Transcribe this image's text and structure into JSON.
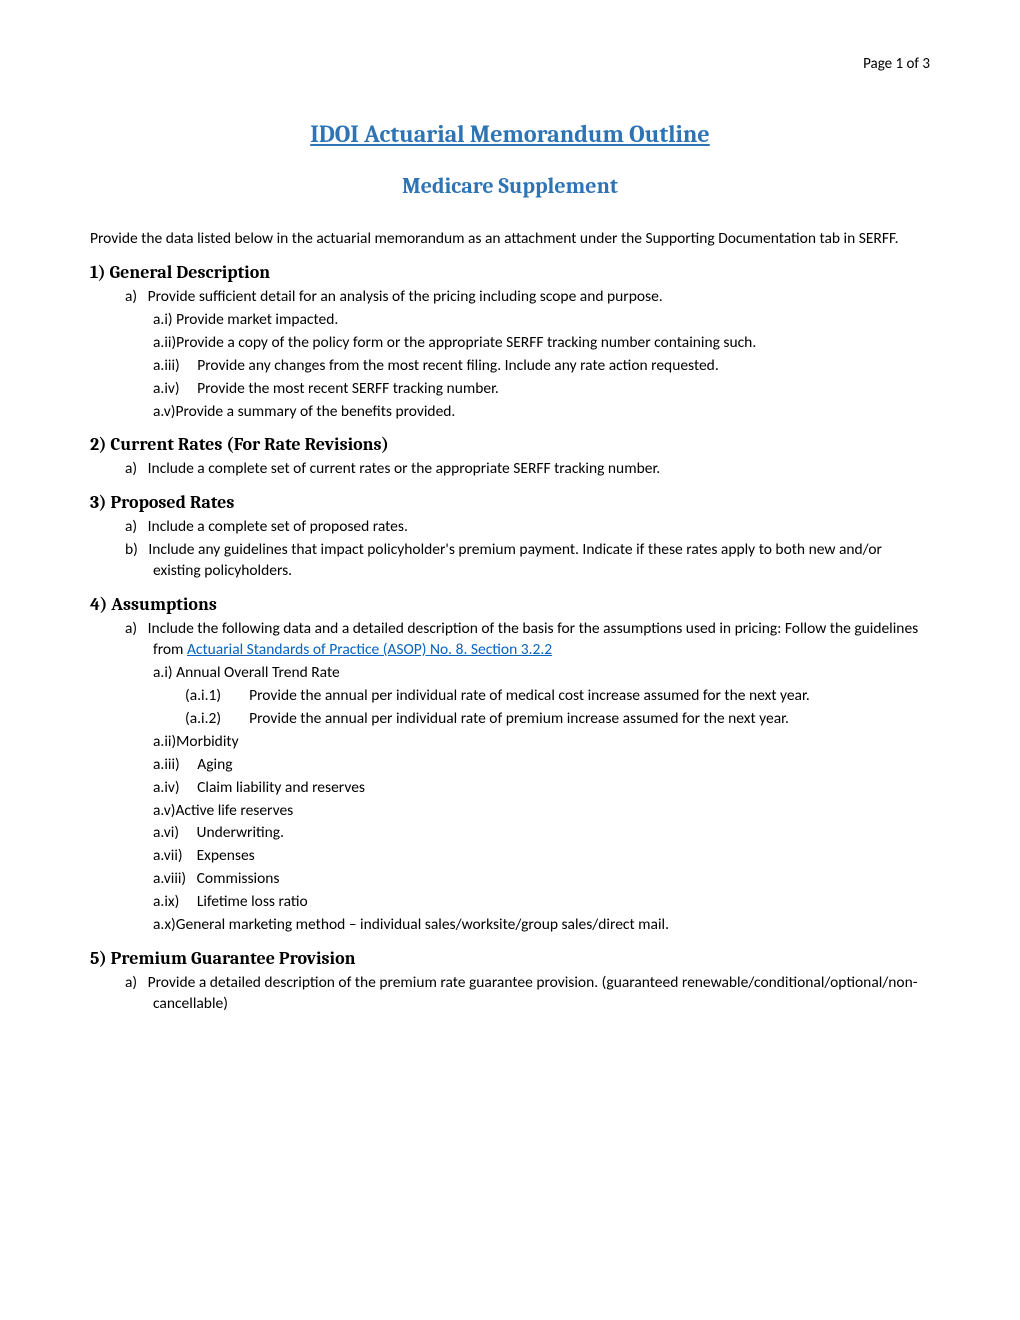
{
  "page_number": "Page 1 of 3",
  "title": "IDOI Actuarial Memorandum Outline",
  "subtitle": "Medicare Supplement",
  "intro": "Provide the data listed below in the actuarial memorandum as an attachment under the Supporting Documentation tab in SERFF.",
  "s1": {
    "heading": "1) General Description",
    "a": "Provide sufficient detail for an analysis of the pricing including scope and purpose.",
    "a_i": "Provide market impacted.",
    "a_ii": "Provide a copy of the policy form or the appropriate SERFF tracking number containing such.",
    "a_iii": "Provide any changes from the most recent filing. Include any rate action requested.",
    "a_iv": "Provide the most recent SERFF tracking number.",
    "a_v": "Provide a summary of the benefits provided."
  },
  "s2": {
    "heading": "2) Current Rates (For Rate Revisions)",
    "a": "Include a complete set of current rates or the appropriate SERFF tracking number."
  },
  "s3": {
    "heading": "3) Proposed Rates",
    "a": "Include a complete set of proposed rates.",
    "b": "Include any guidelines that impact policyholder's premium payment. Indicate if these rates apply to both new and/or existing policyholders."
  },
  "s4": {
    "heading": "4) Assumptions",
    "a_pre": "Include the following data and a detailed description of the basis for the assumptions used in pricing: Follow the guidelines from ",
    "a_link": "Actuarial Standards of Practice (ASOP) No. 8. Section 3.2.2",
    "a_i": "Annual Overall Trend Rate",
    "a_i_1": "Provide the annual per individual rate of medical cost increase assumed for the next year.",
    "a_i_2": "Provide the annual per individual rate of premium increase assumed for the next year.",
    "a_ii": "Morbidity",
    "a_iii": "Aging",
    "a_iv": "Claim liability and reserves",
    "a_v": "Active life reserves",
    "a_vi": "Underwriting.",
    "a_vii": "Expenses",
    "a_viii": "Commissions",
    "a_ix": "Lifetime loss ratio",
    "a_x": "General marketing method – individual sales/worksite/group sales/direct mail."
  },
  "s5": {
    "heading": "5) Premium Guarantee Provision",
    "a": "Provide a detailed description of the premium rate guarantee provision. (guaranteed renewable/conditional/optional/non-cancellable)"
  },
  "labels": {
    "a": "a)",
    "b": "b)",
    "ai": "a.i)",
    "aii": "a.ii)",
    "aiii": "a.iii)",
    "aiv": "a.iv)",
    "av": "a.v)",
    "avi": "a.vi)",
    "avii": "a.vii)",
    "aviii": "a.viii)",
    "aix": "a.ix)",
    "ax": "a.x)",
    "ai1": "(a.i.1)",
    "ai2": "(a.i.2)"
  }
}
